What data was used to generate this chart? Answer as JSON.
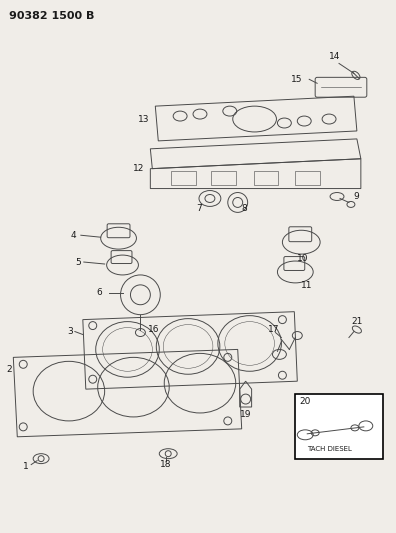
{
  "title": "90382 1500 B",
  "bg_color": "#f0ede8",
  "line_color": "#4a4a4a",
  "text_color": "#1a1a1a",
  "fig_width": 3.96,
  "fig_height": 5.33,
  "dpi": 100
}
